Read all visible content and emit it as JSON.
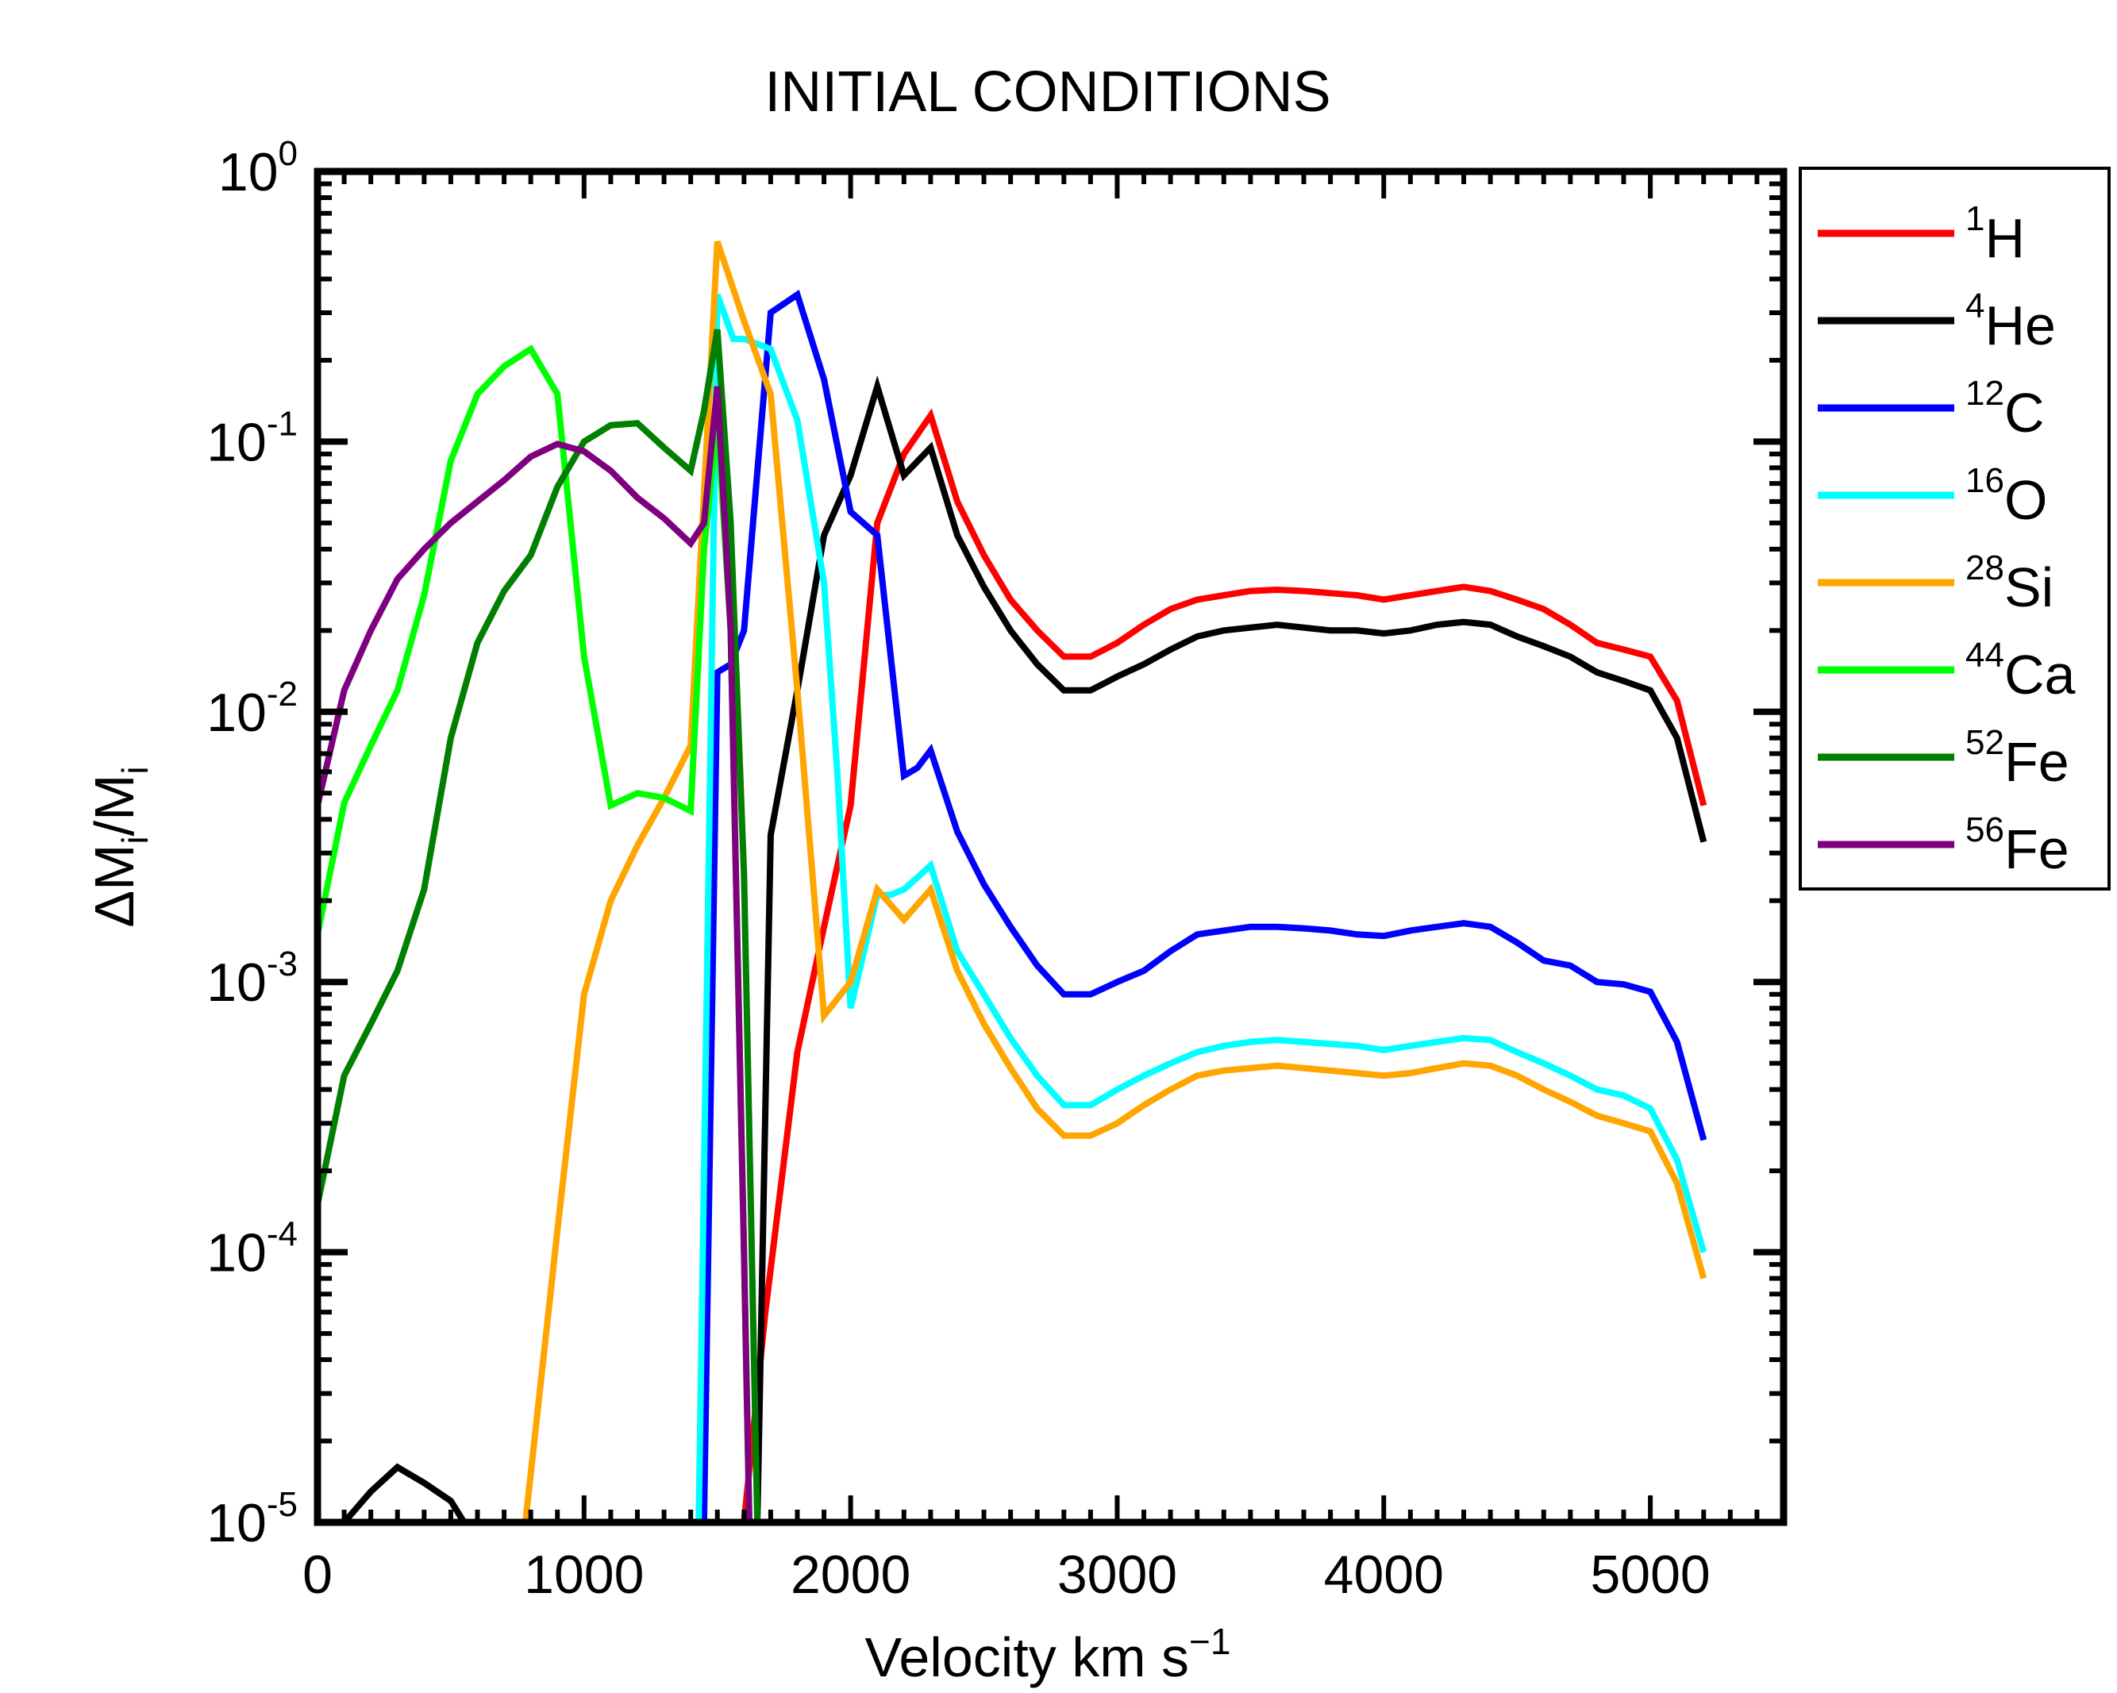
{
  "chart_data": {
    "type": "line",
    "title": "INITIAL CONDITIONS",
    "xlabel": {
      "main": "Velocity km s",
      "sup": "−1"
    },
    "ylabel": {
      "delta": "Δ",
      "m1": "M",
      "sub1": "i",
      "slash": "/",
      "m2": "M",
      "sub2": "i"
    },
    "x_scale": "linear",
    "y_scale": "log",
    "xlim": [
      0,
      5500
    ],
    "ylim": [
      1e-05,
      1
    ],
    "x_ticks": [
      0,
      1000,
      2000,
      3000,
      4000,
      5000
    ],
    "x_tick_labels": [
      "0",
      "1000",
      "2000",
      "3000",
      "4000",
      "5000"
    ],
    "y_ticks": [
      {
        "value": 1e-05,
        "base": "10",
        "exp": "-5"
      },
      {
        "value": 0.0001,
        "base": "10",
        "exp": "-4"
      },
      {
        "value": 0.001,
        "base": "10",
        "exp": "-3"
      },
      {
        "value": 0.01,
        "base": "10",
        "exp": "-2"
      },
      {
        "value": 0.1,
        "base": "10",
        "exp": "-1"
      },
      {
        "value": 1,
        "base": "10",
        "exp": "0"
      }
    ],
    "legend_position": "outside-right",
    "series": [
      {
        "name": "H",
        "iso": "1",
        "color": "#ff0000",
        "x": [
          1600,
          1680,
          1800,
          1900,
          2000,
          2100,
          2200,
          2300,
          2400,
          2500,
          2600,
          2700,
          2800,
          2900,
          3000,
          3100,
          3200,
          3300,
          3400,
          3500,
          3600,
          3700,
          3800,
          3900,
          4000,
          4100,
          4200,
          4300,
          4400,
          4500,
          4600,
          4700,
          4800,
          4900,
          5000,
          5100,
          5200
        ],
        "y": [
          1e-05,
          6e-05,
          0.00055,
          0.0016,
          0.0045,
          0.05,
          0.09,
          0.125,
          0.06,
          0.038,
          0.026,
          0.02,
          0.016,
          0.016,
          0.018,
          0.021,
          0.024,
          0.026,
          0.027,
          0.028,
          0.0283,
          0.028,
          0.0275,
          0.027,
          0.026,
          0.027,
          0.028,
          0.029,
          0.028,
          0.026,
          0.024,
          0.021,
          0.018,
          0.017,
          0.016,
          0.011,
          0.0045
        ]
      },
      {
        "name": "He",
        "iso": "4",
        "color": "#000000",
        "x": [
          100,
          200,
          300,
          400,
          500,
          550,
          1650,
          1700,
          1800,
          1900,
          2000,
          2100,
          2200,
          2300,
          2400,
          2500,
          2600,
          2700,
          2800,
          2900,
          3000,
          3100,
          3200,
          3300,
          3400,
          3500,
          3600,
          3700,
          3800,
          3900,
          4000,
          4100,
          4200,
          4300,
          4400,
          4500,
          4600,
          4700,
          4800,
          4900,
          5000,
          5100,
          5200
        ],
        "y": [
          1e-05,
          1.3e-05,
          1.6e-05,
          1.4e-05,
          1.2e-05,
          1e-05,
          1e-05,
          0.0035,
          0.012,
          0.045,
          0.075,
          0.16,
          0.075,
          0.095,
          0.045,
          0.029,
          0.02,
          0.015,
          0.012,
          0.012,
          0.0135,
          0.015,
          0.017,
          0.019,
          0.02,
          0.0205,
          0.021,
          0.0205,
          0.02,
          0.02,
          0.0195,
          0.02,
          0.021,
          0.0215,
          0.021,
          0.019,
          0.0175,
          0.016,
          0.014,
          0.013,
          0.012,
          0.008,
          0.0033
        ]
      },
      {
        "name": "C",
        "iso": "12",
        "color": "#0000ff",
        "x": [
          1450,
          1500,
          1550,
          1600,
          1700,
          1800,
          1900,
          2000,
          2100,
          2200,
          2250,
          2300,
          2400,
          2500,
          2600,
          2700,
          2800,
          2900,
          3000,
          3100,
          3200,
          3300,
          3400,
          3500,
          3600,
          3700,
          3800,
          3900,
          4000,
          4100,
          4200,
          4300,
          4400,
          4500,
          4600,
          4700,
          4800,
          4900,
          5000,
          5100,
          5200
        ],
        "y": [
          1e-05,
          0.014,
          0.015,
          0.02,
          0.3,
          0.35,
          0.17,
          0.055,
          0.045,
          0.0058,
          0.0062,
          0.0072,
          0.0036,
          0.0023,
          0.0016,
          0.00115,
          0.0009,
          0.0009,
          0.001,
          0.0011,
          0.0013,
          0.0015,
          0.00155,
          0.0016,
          0.0016,
          0.00158,
          0.00155,
          0.0015,
          0.00148,
          0.00155,
          0.0016,
          0.00165,
          0.0016,
          0.0014,
          0.0012,
          0.00115,
          0.001,
          0.00098,
          0.00092,
          0.0006,
          0.00026
        ]
      },
      {
        "name": "O",
        "iso": "16",
        "color": "#00ffff",
        "x": [
          1430,
          1500,
          1560,
          1600,
          1650,
          1700,
          1800,
          1900,
          1950,
          2000,
          2100,
          2150,
          2200,
          2300,
          2400,
          2500,
          2600,
          2700,
          2800,
          2900,
          3000,
          3100,
          3200,
          3300,
          3400,
          3500,
          3600,
          3700,
          3800,
          3900,
          4000,
          4100,
          4200,
          4300,
          4400,
          4500,
          4600,
          4700,
          4800,
          4900,
          5000,
          5100,
          5200
        ],
        "y": [
          1e-05,
          0.35,
          0.24,
          0.24,
          0.23,
          0.22,
          0.12,
          0.03,
          0.006,
          0.0008,
          0.0021,
          0.0021,
          0.0022,
          0.0027,
          0.0013,
          0.0009,
          0.00062,
          0.00045,
          0.00035,
          0.00035,
          0.0004,
          0.00045,
          0.0005,
          0.00055,
          0.00058,
          0.0006,
          0.00061,
          0.0006,
          0.00059,
          0.00058,
          0.00056,
          0.00058,
          0.0006,
          0.00062,
          0.00061,
          0.00055,
          0.0005,
          0.00045,
          0.0004,
          0.00038,
          0.00034,
          0.00022,
          0.0001
        ]
      },
      {
        "name": "Si",
        "iso": "28",
        "color": "#ffa500",
        "x": [
          780,
          900,
          1000,
          1100,
          1200,
          1300,
          1400,
          1500,
          1600,
          1700,
          1800,
          1900,
          2000,
          2100,
          2200,
          2300,
          2400,
          2500,
          2600,
          2700,
          2800,
          2900,
          3000,
          3100,
          3200,
          3300,
          3400,
          3500,
          3600,
          3700,
          3800,
          3900,
          4000,
          4100,
          4200,
          4300,
          4400,
          4500,
          4600,
          4700,
          4800,
          4900,
          5000,
          5100,
          5200
        ],
        "y": [
          1e-05,
          0.00012,
          0.0009,
          0.002,
          0.0032,
          0.0048,
          0.0075,
          0.55,
          0.28,
          0.15,
          0.012,
          0.00075,
          0.001,
          0.0022,
          0.0017,
          0.0022,
          0.0011,
          0.0007,
          0.00048,
          0.00034,
          0.00027,
          0.00027,
          0.0003,
          0.00035,
          0.0004,
          0.00045,
          0.00047,
          0.00048,
          0.00049,
          0.00048,
          0.00047,
          0.00046,
          0.00045,
          0.00046,
          0.00048,
          0.0005,
          0.00049,
          0.00045,
          0.0004,
          0.00036,
          0.00032,
          0.0003,
          0.00028,
          0.00018,
          8e-05
        ]
      },
      {
        "name": "Ca",
        "iso": "44",
        "color": "#00ff00",
        "x": [
          0,
          100,
          200,
          300,
          400,
          500,
          600,
          700,
          800,
          900,
          1000,
          1100,
          1200,
          1300,
          1400,
          1450,
          1500,
          1550,
          1600,
          1620
        ],
        "y": [
          0.0015,
          0.0046,
          0.0075,
          0.012,
          0.027,
          0.085,
          0.15,
          0.19,
          0.22,
          0.15,
          0.016,
          0.0045,
          0.005,
          0.0048,
          0.0043,
          0.04,
          0.12,
          0.02,
          0.0001,
          1e-05
        ]
      },
      {
        "name": "Fe",
        "iso": "52",
        "color": "#007f00",
        "x": [
          0,
          100,
          200,
          300,
          400,
          500,
          600,
          700,
          800,
          900,
          1000,
          1100,
          1200,
          1300,
          1400,
          1450,
          1500,
          1550,
          1600,
          1650,
          1700
        ],
        "y": [
          0.00015,
          0.00045,
          0.0007,
          0.0011,
          0.0022,
          0.008,
          0.018,
          0.028,
          0.038,
          0.068,
          0.1,
          0.115,
          0.117,
          0.095,
          0.078,
          0.13,
          0.26,
          0.05,
          0.0025,
          1e-05,
          1e-05
        ]
      },
      {
        "name": "Fe",
        "iso": "56",
        "color": "#7f007f",
        "x": [
          0,
          100,
          200,
          300,
          400,
          500,
          600,
          700,
          800,
          900,
          1000,
          1100,
          1200,
          1300,
          1400,
          1450,
          1500,
          1550,
          1600,
          1620
        ],
        "y": [
          0.0045,
          0.012,
          0.02,
          0.031,
          0.04,
          0.05,
          0.06,
          0.072,
          0.088,
          0.098,
          0.092,
          0.078,
          0.062,
          0.052,
          0.042,
          0.05,
          0.16,
          0.02,
          0.0001,
          1e-05
        ]
      }
    ]
  }
}
